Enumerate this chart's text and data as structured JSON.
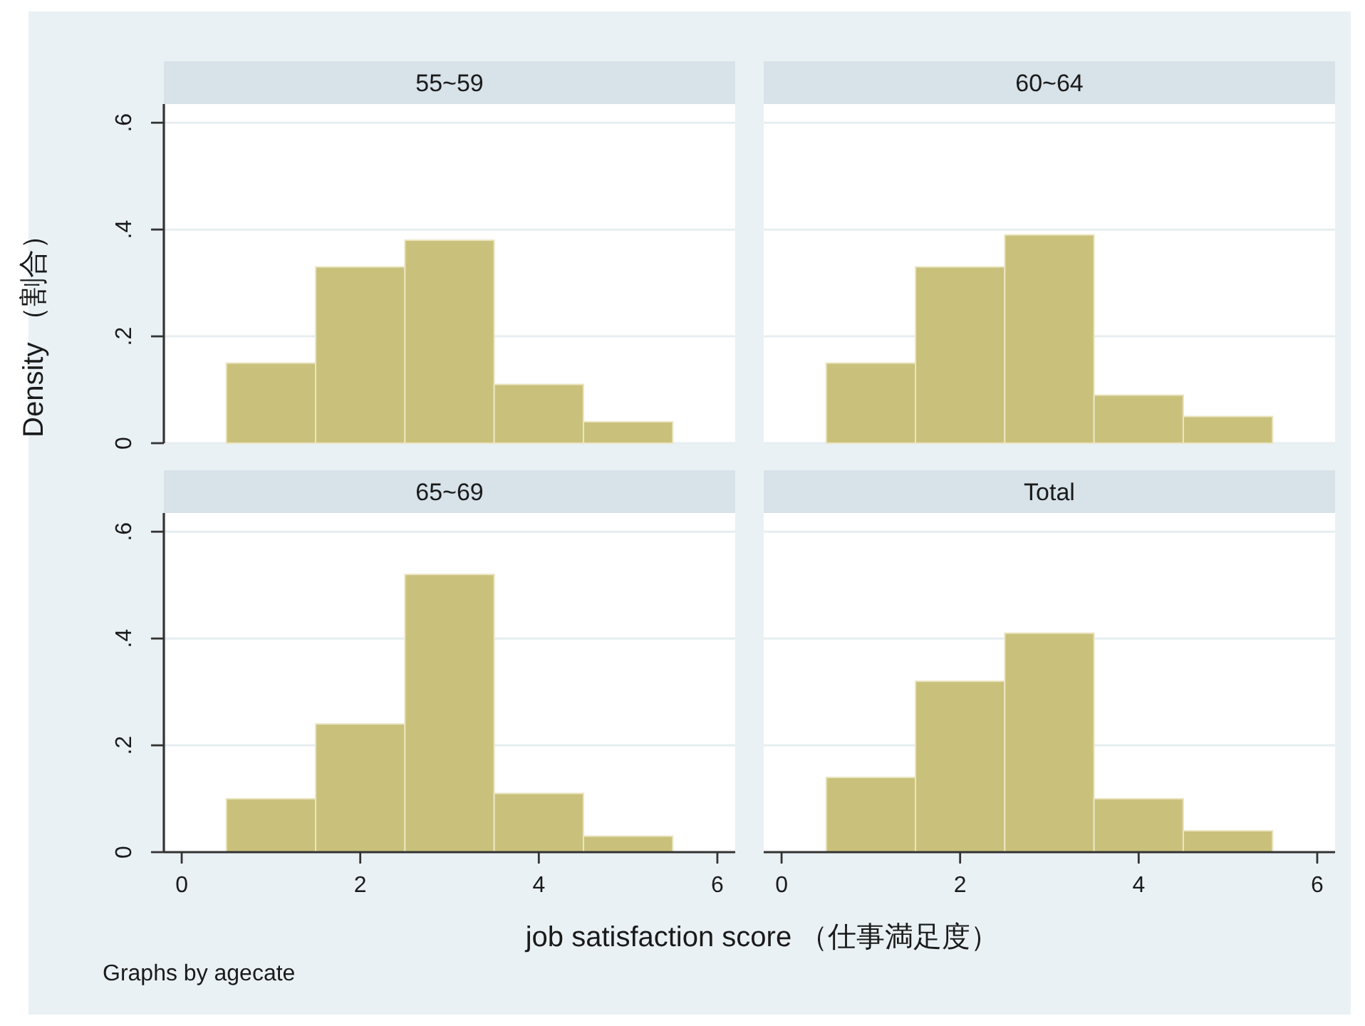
{
  "chart_data": [
    {
      "type": "histogram",
      "title": "55~59",
      "bins": [
        0.5,
        1.5,
        2.5,
        3.5,
        4.5,
        5.5
      ],
      "values": [
        0.15,
        0.33,
        0.38,
        0.11,
        0.04
      ],
      "color": "#c9c17b",
      "xlim": [
        -0.2,
        6.2
      ],
      "ylim": [
        0,
        0.635
      ],
      "yticks": [
        0,
        {
          "value": 0.2,
          "label": ".2"
        },
        {
          "value": 0.4,
          "label": ".4"
        },
        {
          "value": 0.6,
          "label": ".6"
        }
      ],
      "grid": "y",
      "tick_labels": "y",
      "ylabel": "Density （割合）"
    },
    {
      "type": "histogram",
      "title": "60~64",
      "bins": [
        0.5,
        1.5,
        2.5,
        3.5,
        4.5,
        5.5
      ],
      "values": [
        0.15,
        0.33,
        0.39,
        0.09,
        0.05
      ],
      "color": "#c9c17b",
      "xlim": [
        -0.2,
        6.2
      ],
      "ylim": [
        0,
        0.635
      ],
      "yticks": [
        0,
        0.2,
        0.4,
        0.6
      ],
      "grid": "y",
      "tick_labels": false
    },
    {
      "type": "histogram",
      "title": "65~69",
      "bins": [
        0.5,
        1.5,
        2.5,
        3.5,
        4.5,
        5.5
      ],
      "values": [
        0.1,
        0.24,
        0.52,
        0.11,
        0.03
      ],
      "color": "#c9c17b",
      "xlim": [
        -0.2,
        6.2
      ],
      "ylim": [
        0,
        0.635
      ],
      "xticks": [
        0,
        2,
        4,
        6
      ],
      "yticks": [
        0,
        {
          "value": 0.2,
          "label": ".2"
        },
        {
          "value": 0.4,
          "label": ".4"
        },
        {
          "value": 0.6,
          "label": ".6"
        }
      ],
      "grid": "y",
      "xlabel": "job satisfaction score （仕事満足度）",
      "annotations": [
        "Graphs by agecate"
      ]
    },
    {
      "type": "histogram",
      "title": "Total",
      "bins": [
        0.5,
        1.5,
        2.5,
        3.5,
        4.5,
        5.5
      ],
      "values": [
        0.14,
        0.32,
        0.41,
        0.1,
        0.04
      ],
      "color": "#c9c17b",
      "xlim": [
        -0.2,
        6.2
      ],
      "ylim": [
        0,
        0.635
      ],
      "xticks": [
        0,
        2,
        4,
        6
      ],
      "yticks": [
        0,
        0.2,
        0.4,
        0.6
      ],
      "grid": "y",
      "tick_labels": "x"
    }
  ]
}
